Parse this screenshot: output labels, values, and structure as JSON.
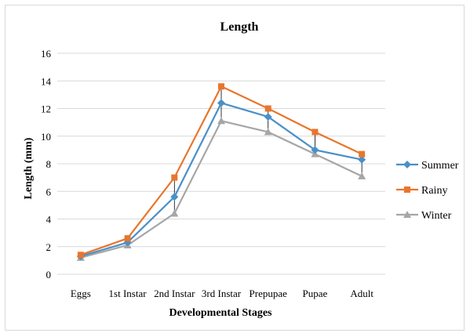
{
  "chart_data": {
    "type": "line",
    "title": "Length",
    "xlabel": "Developmental Stages",
    "ylabel": "Length (mm)",
    "categories": [
      "Eggs",
      "1st Instar",
      "2nd Instar",
      "3rd Instar",
      "Prepupae",
      "Pupae",
      "Adult"
    ],
    "ylim": [
      0,
      16
    ],
    "yticks": [
      0,
      2,
      4,
      6,
      8,
      10,
      12,
      14,
      16
    ],
    "grid": true,
    "legend_position": "right",
    "series": [
      {
        "name": "Summer",
        "color": "#4a90c8",
        "marker": "diamond",
        "values": [
          1.3,
          2.3,
          5.6,
          12.4,
          11.4,
          9.0,
          8.3
        ]
      },
      {
        "name": "Rainy",
        "color": "#e8762d",
        "marker": "square",
        "values": [
          1.4,
          2.6,
          7.0,
          13.6,
          12.0,
          10.3,
          8.7
        ]
      },
      {
        "name": "Winter",
        "color": "#a6a6a6",
        "marker": "triangle",
        "values": [
          1.2,
          2.1,
          4.4,
          11.1,
          10.3,
          8.7,
          7.1
        ]
      }
    ]
  }
}
